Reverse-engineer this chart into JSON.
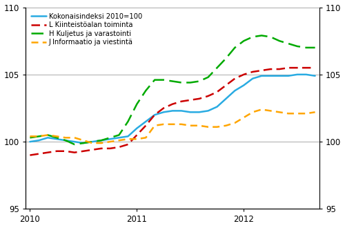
{
  "x_labels": [
    "2010",
    "2011",
    "2012"
  ],
  "x_ticks_pos": [
    0,
    12,
    24
  ],
  "xlim": [
    -0.5,
    32.5
  ],
  "ylim": [
    95,
    110
  ],
  "yticks": [
    95,
    100,
    105,
    110
  ],
  "series": {
    "Kokonaisindeksi 2010=100": {
      "color": "#29ABE2",
      "linestyle": "-",
      "linewidth": 1.8,
      "dashes": null,
      "values": [
        100.0,
        100.1,
        100.3,
        100.2,
        100.1,
        100.0,
        99.9,
        100.0,
        100.1,
        100.2,
        100.3,
        100.4,
        101.0,
        101.5,
        102.0,
        102.2,
        102.3,
        102.3,
        102.2,
        102.2,
        102.3,
        102.6,
        103.2,
        103.8,
        104.2,
        104.7,
        104.9,
        104.9,
        104.9,
        104.9,
        105.0,
        105.0,
        104.9
      ]
    },
    "L Kiinteistöalan toiminta": {
      "color": "#CC0000",
      "linestyle": "--",
      "linewidth": 1.8,
      "dashes": [
        5,
        2.5
      ],
      "values": [
        99.0,
        99.1,
        99.2,
        99.3,
        99.3,
        99.2,
        99.3,
        99.4,
        99.5,
        99.5,
        99.6,
        99.8,
        100.5,
        101.2,
        102.0,
        102.5,
        102.8,
        103.0,
        103.1,
        103.2,
        103.4,
        103.7,
        104.2,
        104.7,
        105.0,
        105.2,
        105.3,
        105.4,
        105.4,
        105.5,
        105.5,
        105.5,
        105.5
      ]
    },
    "H Kuljetus ja varastointi": {
      "color": "#00AA00",
      "linestyle": "--",
      "linewidth": 1.8,
      "dashes": [
        7,
        3
      ],
      "values": [
        100.3,
        100.4,
        100.5,
        100.3,
        100.1,
        99.8,
        99.9,
        100.0,
        100.1,
        100.3,
        100.5,
        101.5,
        102.8,
        103.8,
        104.6,
        104.6,
        104.5,
        104.4,
        104.4,
        104.5,
        104.8,
        105.5,
        106.2,
        107.0,
        107.5,
        107.8,
        107.9,
        107.8,
        107.5,
        107.3,
        107.1,
        107.0,
        107.0
      ]
    },
    "J Informaatio ja viestintä": {
      "color": "#FFA500",
      "linestyle": "--",
      "linewidth": 1.8,
      "dashes": [
        4,
        2.5
      ],
      "values": [
        100.4,
        100.4,
        100.5,
        100.4,
        100.3,
        100.3,
        100.1,
        99.9,
        99.9,
        100.0,
        100.1,
        100.2,
        100.2,
        100.3,
        101.2,
        101.3,
        101.3,
        101.3,
        101.2,
        101.2,
        101.1,
        101.1,
        101.2,
        101.4,
        101.8,
        102.2,
        102.4,
        102.3,
        102.2,
        102.1,
        102.1,
        102.1,
        102.2
      ]
    }
  },
  "grid_color": "#AAAAAA",
  "grid_linewidth": 0.7,
  "background_color": "#FFFFFF",
  "right_yticks": [
    95,
    100,
    105,
    110
  ],
  "legend_fontsize": 7.2
}
